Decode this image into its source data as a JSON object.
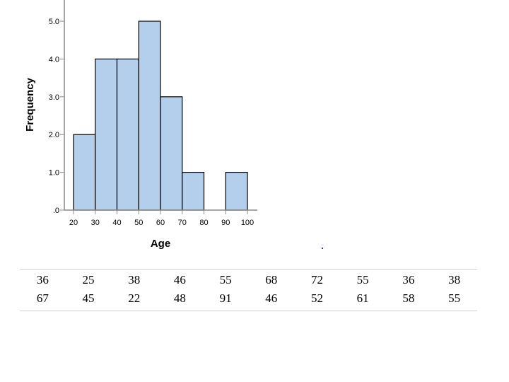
{
  "chart_data": {
    "type": "histogram",
    "xlabel": "Age",
    "ylabel": "Frequency",
    "bins": [
      {
        "from": 20,
        "to": 30,
        "count": 2
      },
      {
        "from": 30,
        "to": 40,
        "count": 4
      },
      {
        "from": 40,
        "to": 50,
        "count": 4
      },
      {
        "from": 50,
        "to": 60,
        "count": 5
      },
      {
        "from": 60,
        "to": 70,
        "count": 3
      },
      {
        "from": 70,
        "to": 80,
        "count": 1
      },
      {
        "from": 80,
        "to": 90,
        "count": 0
      },
      {
        "from": 90,
        "to": 100,
        "count": 1
      }
    ],
    "xlim": [
      20,
      100
    ],
    "ylim": [
      0,
      5
    ],
    "xticks": [
      "20",
      "30",
      "40",
      "50",
      "60",
      "70",
      "80",
      "90",
      "100"
    ],
    "yticks": [
      ".0",
      "1.0",
      "2.0",
      "3.0",
      "4.0",
      "5.0"
    ],
    "grid": false,
    "bar_color": "#b4cfeb",
    "bar_edge_color": "#000000"
  },
  "table": {
    "rows": [
      [
        "36",
        "25",
        "38",
        "46",
        "55",
        "68",
        "72",
        "55",
        "36",
        "38"
      ],
      [
        "67",
        "45",
        "22",
        "48",
        "91",
        "46",
        "52",
        "61",
        "58",
        "55"
      ]
    ]
  }
}
